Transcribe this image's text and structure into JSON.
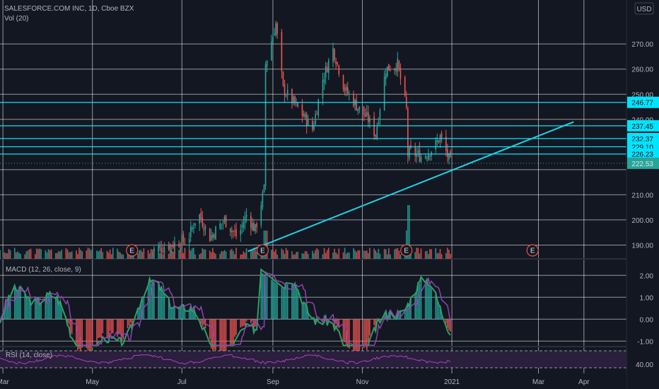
{
  "header": {
    "symbol": "SALESFORCE.COM INC, 1D, Cboe BZX",
    "volume_label": "Vol (20)",
    "currency": "USD",
    "macd_label": "MACD (12, 26, close, 9)",
    "rsi_label": "RSI (14, close)"
  },
  "colors": {
    "background": "#131722",
    "grid": "#ffffff",
    "up": "#26a69a",
    "down": "#ef5350",
    "level_line": "#00e5ff",
    "trendline": "#1fd1e5",
    "macd_line": "#2e9e6b",
    "signal_line": "#8e44ad",
    "rsi_band": "#2a1f3d",
    "rsi_line": "#b03fc4"
  },
  "chart_data": [
    {
      "type": "candlestick",
      "pane": "price",
      "x_tick_labels": [
        "Mar",
        "May",
        "Jul",
        "Sep",
        "Nov",
        "2021",
        "Mar",
        "Apr"
      ],
      "y_tick_labels": [
        "270.00",
        "260.00",
        "250.00",
        "240.00",
        "210.00",
        "200.00",
        "190.00"
      ],
      "y_ticks": [
        270,
        260,
        250,
        240,
        210,
        200,
        190
      ],
      "ylim": [
        184.5,
        287.5
      ],
      "levels": [
        246.77,
        237.45,
        232.37,
        229.1,
        226.23
      ],
      "last_price": 222.53,
      "earnings_markers": [
        "E",
        "E",
        "E",
        "E"
      ],
      "trendline": {
        "from": [
          "2020-08-15",
          187.5
        ],
        "to": [
          "2021-03-25",
          239.0
        ]
      },
      "ohlc_sample": [
        {
          "date": "2020-06-15",
          "close": 188
        },
        {
          "date": "2020-07-15",
          "close": 198
        },
        {
          "date": "2020-08-25",
          "close": 212
        },
        {
          "date": "2020-09-01",
          "close": 275
        },
        {
          "date": "2020-10-15",
          "close": 270
        },
        {
          "date": "2020-11-10",
          "close": 236
        },
        {
          "date": "2020-11-20",
          "close": 268
        },
        {
          "date": "2020-12-01",
          "close": 224
        },
        {
          "date": "2020-12-20",
          "close": 232
        },
        {
          "date": "2020-12-31",
          "close": 222.53
        }
      ]
    },
    {
      "type": "bar",
      "pane": "macd",
      "series": [
        {
          "name": "MACD (12, 26, close, 9)"
        }
      ],
      "y_tick_labels": [
        "2.00",
        "1.00",
        "0.00",
        "-1.00"
      ],
      "y_ticks": [
        2,
        1,
        0,
        -1
      ],
      "ylim": [
        -1.25,
        2.75
      ]
    },
    {
      "type": "line",
      "pane": "rsi",
      "series": [
        {
          "name": "RSI (14, close)"
        }
      ],
      "y_tick_labels": [
        "40.00"
      ],
      "y_ticks": [
        40
      ]
    }
  ]
}
